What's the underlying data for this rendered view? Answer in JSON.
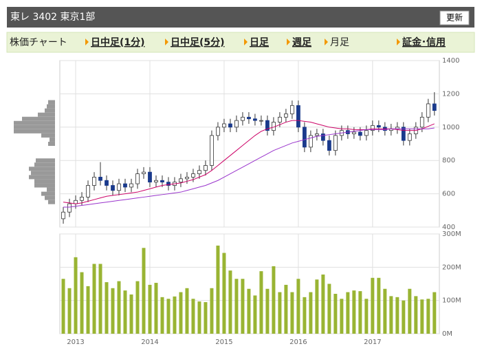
{
  "header": {
    "title": "東レ 3402 東京1部",
    "button": "更新"
  },
  "tabs": [
    "株価チャート",
    "日中足(1分)",
    "日中足(5分)",
    "日足",
    "週足",
    "月足",
    "証金･信用"
  ],
  "active_tab": 5,
  "chart_data": [
    {
      "type": "candlestick",
      "open": [
        450,
        490,
        540,
        560,
        580,
        650,
        700,
        680,
        650,
        620,
        660,
        640,
        660,
        720,
        730,
        670,
        680,
        670,
        650,
        670,
        690,
        700,
        720,
        740,
        770,
        950,
        1000,
        1020,
        1000,
        1040,
        1060,
        1050,
        1040,
        1040,
        980,
        1030,
        1060,
        1080,
        1130,
        1000,
        880,
        950,
        960,
        920,
        860,
        950,
        980,
        960,
        970,
        950,
        980,
        1010,
        1000,
        980,
        990,
        1000,
        920,
        960,
        1000,
        1060,
        1140
      ],
      "high": [
        520,
        570,
        590,
        610,
        680,
        730,
        790,
        710,
        680,
        690,
        690,
        690,
        750,
        760,
        760,
        710,
        710,
        700,
        700,
        720,
        730,
        750,
        770,
        800,
        980,
        1030,
        1050,
        1050,
        1070,
        1090,
        1090,
        1080,
        1070,
        1070,
        1060,
        1090,
        1110,
        1160,
        1160,
        1030,
        980,
        990,
        990,
        950,
        980,
        1010,
        1010,
        1000,
        1000,
        1010,
        1040,
        1040,
        1030,
        1020,
        1030,
        1030,
        990,
        1030,
        1090,
        1170,
        1210
      ],
      "low": [
        420,
        460,
        510,
        530,
        550,
        620,
        650,
        620,
        590,
        590,
        610,
        610,
        630,
        690,
        640,
        640,
        640,
        620,
        620,
        640,
        660,
        670,
        690,
        710,
        740,
        920,
        970,
        970,
        970,
        1010,
        1020,
        1010,
        1010,
        950,
        950,
        1000,
        1030,
        1050,
        970,
        850,
        850,
        920,
        890,
        830,
        830,
        920,
        930,
        930,
        920,
        920,
        950,
        970,
        950,
        950,
        960,
        890,
        890,
        930,
        970,
        1030,
        1070
      ],
      "close": [
        490,
        540,
        560,
        580,
        650,
        700,
        680,
        650,
        620,
        660,
        640,
        660,
        720,
        730,
        670,
        680,
        670,
        650,
        670,
        690,
        700,
        720,
        740,
        770,
        950,
        1000,
        1020,
        1000,
        1040,
        1060,
        1050,
        1040,
        1040,
        980,
        1030,
        1060,
        1080,
        1130,
        1000,
        880,
        950,
        960,
        920,
        860,
        950,
        980,
        960,
        970,
        950,
        980,
        1010,
        1000,
        980,
        990,
        1000,
        920,
        960,
        1000,
        1060,
        1140,
        1100
      ],
      "up_color": "#ffffff",
      "down_color": "#1a3a8c",
      "series": [
        {
          "color": "#cc0066",
          "values": [
            550,
            545,
            540,
            545,
            555,
            565,
            575,
            585,
            590,
            595,
            600,
            605,
            610,
            620,
            630,
            640,
            650,
            655,
            660,
            665,
            675,
            685,
            700,
            715,
            740,
            770,
            800,
            830,
            860,
            890,
            920,
            950,
            975,
            990,
            1000,
            1015,
            1030,
            1040,
            1040,
            1035,
            1030,
            1020,
            1010,
            1000,
            995,
            990,
            990,
            985,
            985,
            985,
            990,
            990,
            990,
            990,
            985,
            980,
            980,
            980,
            990,
            1005,
            1020
          ]
        },
        {
          "color": "#9933cc",
          "values": [
            520,
            520,
            525,
            530,
            535,
            540,
            545,
            550,
            555,
            560,
            565,
            570,
            575,
            580,
            585,
            590,
            595,
            600,
            605,
            610,
            620,
            630,
            640,
            650,
            665,
            680,
            700,
            720,
            740,
            760,
            780,
            800,
            820,
            840,
            860,
            875,
            890,
            905,
            915,
            925,
            935,
            945,
            950,
            955,
            960,
            965,
            970,
            975,
            980,
            985,
            985,
            985,
            985,
            990,
            990,
            990,
            990,
            990,
            990,
            990,
            995
          ]
        }
      ],
      "profile": {
        "color": "#999999",
        "levels": [
          1150,
          1125,
          1100,
          1075,
          1050,
          1025,
          1000,
          975,
          950,
          925,
          900,
          800,
          775,
          750,
          725,
          700,
          675,
          650,
          625,
          600,
          575,
          550
        ],
        "values": [
          10,
          12,
          15,
          25,
          48,
          60,
          60,
          60,
          20,
          8,
          10,
          28,
          30,
          38,
          35,
          38,
          30,
          30,
          12,
          20,
          15,
          10
        ]
      },
      "ylim": [
        400,
        1400
      ],
      "yticks": [
        400,
        600,
        800,
        1000,
        1200,
        1400
      ],
      "xlim": [
        -0.56,
        60.8
      ],
      "grid": true
    },
    {
      "type": "bar",
      "values": [
        165,
        137,
        230,
        185,
        143,
        210,
        210,
        155,
        137,
        158,
        130,
        118,
        158,
        258,
        147,
        153,
        110,
        105,
        112,
        125,
        137,
        105,
        97,
        95,
        137,
        265,
        243,
        190,
        165,
        165,
        135,
        115,
        188,
        135,
        203,
        125,
        147,
        125,
        165,
        110,
        125,
        163,
        178,
        150,
        120,
        105,
        125,
        130,
        128,
        105,
        168,
        168,
        135,
        113,
        110,
        100,
        135,
        113,
        103,
        105,
        125
      ],
      "color": "#99b433",
      "ylim": [
        0,
        300
      ],
      "yticks": [
        {
          "value": 0,
          "label": "0M"
        },
        {
          "value": 100,
          "label": "100M"
        },
        {
          "value": 200,
          "label": "200M"
        },
        {
          "value": 300,
          "label": "300M"
        }
      ],
      "xlim": [
        -0.56,
        60.8
      ],
      "xticks": [
        {
          "value": 2,
          "label": "2013"
        },
        {
          "value": 14,
          "label": "2014"
        },
        {
          "value": 26,
          "label": "2015"
        },
        {
          "value": 38,
          "label": "2016"
        },
        {
          "value": 50,
          "label": "2017"
        }
      ],
      "grid": true
    }
  ]
}
